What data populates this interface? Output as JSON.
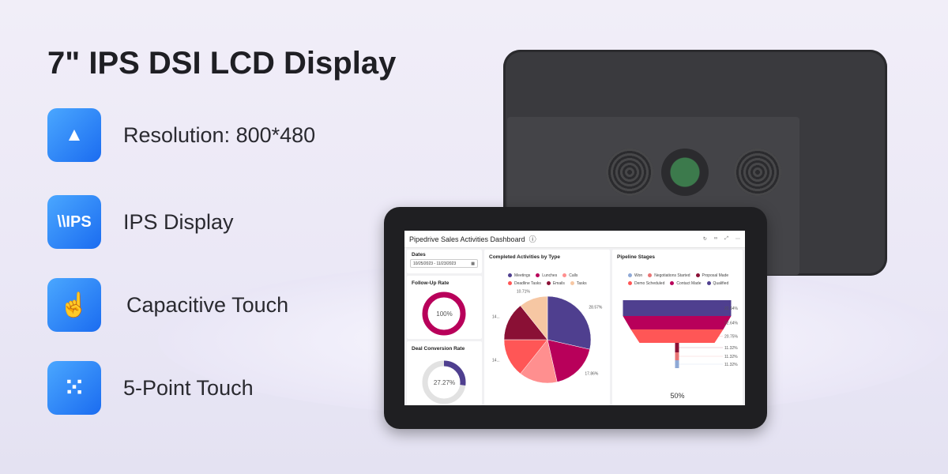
{
  "title": "7\" IPS DSI LCD Display",
  "features": [
    {
      "icon": "resolution-icon",
      "glyph": "▲",
      "label": "Resolution: 800*480"
    },
    {
      "icon": "ips-icon",
      "glyph": "\\\\IPS",
      "label": "IPS Display"
    },
    {
      "icon": "touch-hand-icon",
      "glyph": "☝",
      "label": "Capacitive Touch"
    },
    {
      "icon": "five-point-icon",
      "glyph": "⁙",
      "label": "5-Point Touch"
    }
  ],
  "dashboard": {
    "title": "Pipedrive Sales Activities Dashboard",
    "dates_label": "Dates",
    "dates_value": "10/25/2023 - 11/23/2023",
    "followup": {
      "title": "Follow-Up Rate",
      "value": "100%",
      "fraction": 1.0,
      "color": "#b8005a"
    },
    "conversion": {
      "title": "Deal Conversion Rate",
      "value": "27.27%",
      "fraction": 0.2727,
      "color": "#4f3f8f"
    },
    "activities": {
      "title": "Completed Activities by Type",
      "legend": [
        "Meetings",
        "Lunches",
        "Calls",
        "Deadline Tasks",
        "Emails",
        "Tasks"
      ],
      "chart_data": {
        "type": "pie",
        "slices": [
          {
            "name": "Meetings",
            "value": 28.57,
            "color": "#4f3f8f",
            "label": "28.57%"
          },
          {
            "name": "Lunches",
            "value": 17.86,
            "color": "#b8005a",
            "label": "17.86%"
          },
          {
            "name": "Calls",
            "value": 14.29,
            "color": "#ff8f8f",
            "label": ""
          },
          {
            "name": "Deadline Tasks",
            "value": 14.29,
            "color": "#ff5656",
            "label": "14..."
          },
          {
            "name": "Emails",
            "value": 14.29,
            "color": "#8a1035",
            "label": "14..."
          },
          {
            "name": "Tasks",
            "value": 10.71,
            "color": "#f6c7a3",
            "label": "10.71%"
          }
        ]
      }
    },
    "pipeline": {
      "title": "Pipeline Stages",
      "legend": [
        "Won",
        "Negotiations Started",
        "Proposal Made",
        "Demo Scheduled",
        "Contact Made",
        "Qualified"
      ],
      "chart_data": {
        "type": "funnel",
        "stages": [
          {
            "name": "Qualified",
            "label": "22.64%",
            "color": "#4f3f8f"
          },
          {
            "name": "Contact Made",
            "label": "22.64%",
            "color": "#b8005a"
          },
          {
            "name": "Demo Scheduled",
            "label": "20.75%",
            "color": "#ff5656"
          },
          {
            "name": "Proposal Made",
            "label": "11.32%",
            "color": "#8a1035"
          },
          {
            "name": "Negotiations Started",
            "label": "11.32%",
            "color": "#e87474"
          },
          {
            "name": "Won",
            "label": "11.32%",
            "color": "#8fa9d6"
          }
        ]
      },
      "footer": "50%"
    }
  }
}
